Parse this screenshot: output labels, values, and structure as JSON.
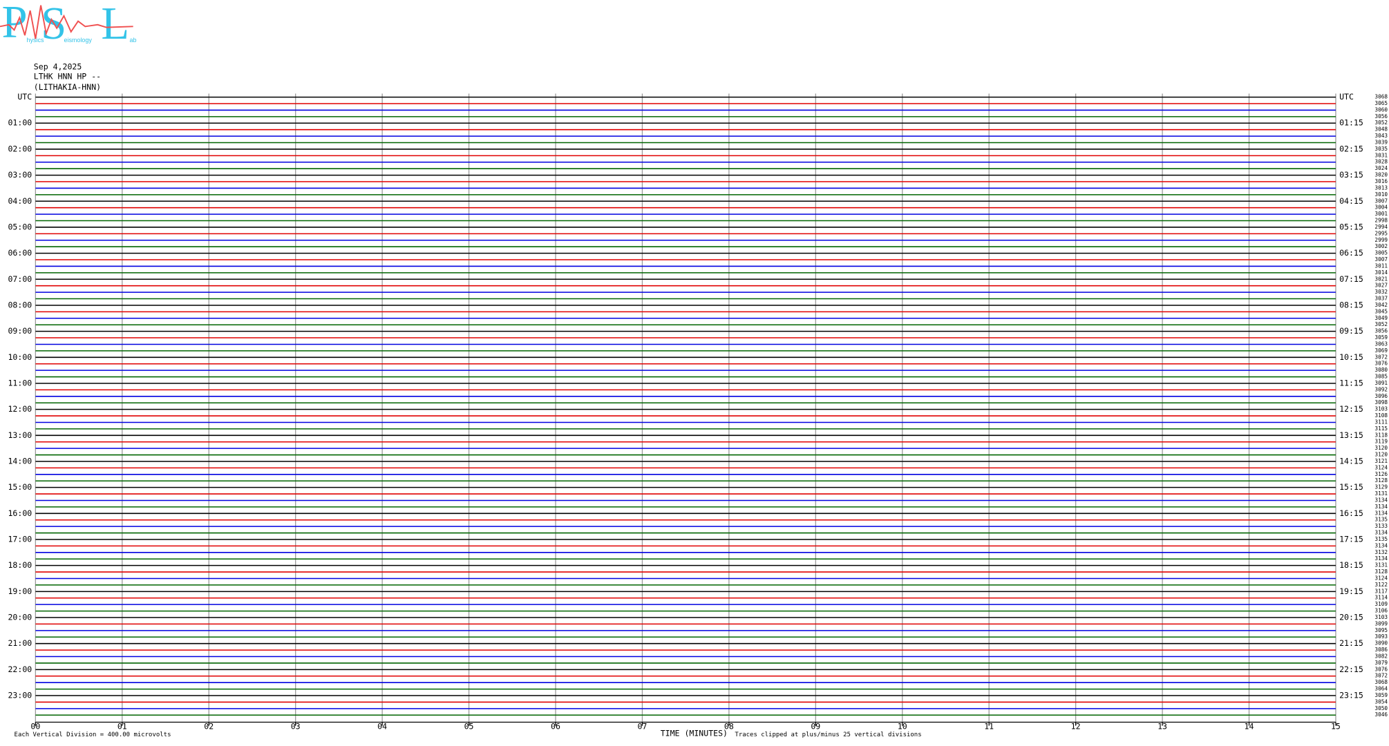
{
  "header": {
    "logo": {
      "letters": [
        "P",
        "S",
        "L"
      ],
      "words": [
        "hysics",
        "eismology",
        "ab"
      ]
    },
    "date": "Sep 4,2025",
    "station": "LTHK HNN HP --",
    "site": "(LITHAKIA-HNN)"
  },
  "trace_colors": [
    "#000000",
    "#e00000",
    "#0000e0",
    "#006400"
  ],
  "left_labels": [
    "UTC",
    "01:00",
    "02:00",
    "03:00",
    "04:00",
    "05:00",
    "06:00",
    "07:00",
    "08:00",
    "09:00",
    "10:00",
    "11:00",
    "12:00",
    "13:00",
    "14:00",
    "15:00",
    "16:00",
    "17:00",
    "18:00",
    "19:00",
    "20:00",
    "21:00",
    "22:00",
    "23:00"
  ],
  "right_labels": [
    "UTC",
    "01:15",
    "02:15",
    "03:15",
    "04:15",
    "05:15",
    "06:15",
    "07:15",
    "08:15",
    "09:15",
    "10:15",
    "11:15",
    "12:15",
    "13:15",
    "14:15",
    "15:15",
    "16:15",
    "17:15",
    "18:15",
    "19:15",
    "20:15",
    "21:15",
    "22:15",
    "23:15"
  ],
  "row_counts": [
    "3068",
    "3065",
    "3060",
    "3056",
    "3052",
    "3048",
    "3043",
    "3039",
    "3035",
    "3031",
    "3028",
    "3024",
    "3020",
    "3016",
    "3013",
    "3010",
    "3007",
    "3004",
    "3001",
    "2998",
    "2994",
    "2995",
    "2999",
    "3002",
    "3005",
    "3007",
    "3011",
    "3014",
    "3021",
    "3027",
    "3032",
    "3037",
    "3042",
    "3045",
    "3049",
    "3052",
    "3056",
    "3059",
    "3063",
    "3069",
    "3072",
    "3076",
    "3080",
    "3085",
    "3091",
    "3092",
    "3096",
    "3098",
    "3103",
    "3108",
    "3111",
    "3115",
    "3118",
    "3119",
    "3120",
    "3120",
    "3121",
    "3124",
    "3126",
    "3128",
    "3129",
    "3131",
    "3134",
    "3134",
    "3134",
    "3135",
    "3133",
    "3134",
    "3135",
    "3134",
    "3132",
    "3134",
    "3131",
    "3128",
    "3124",
    "3122",
    "3117",
    "3114",
    "3109",
    "3106",
    "3103",
    "3099",
    "3095",
    "3093",
    "3090",
    "3086",
    "3082",
    "3079",
    "3076",
    "3072",
    "3068",
    "3064",
    "3059",
    "3054",
    "3050",
    "3046"
  ],
  "x_axis": {
    "ticks": [
      "00",
      "01",
      "02",
      "03",
      "04",
      "05",
      "06",
      "07",
      "08",
      "09",
      "10",
      "11",
      "12",
      "13",
      "14",
      "15"
    ],
    "title": "TIME (MINUTES)"
  },
  "footer": {
    "scale": "Each Vertical Division =  400.00 microvolts",
    "clip": "Traces clipped at plus/minus 25 vertical divisions"
  }
}
